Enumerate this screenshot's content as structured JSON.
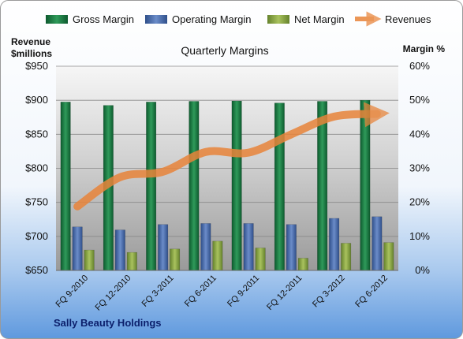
{
  "chart_data": {
    "type": "bar",
    "title": "Quarterly Margins",
    "company": "Sally Beauty Holdings",
    "left_axis_label": [
      "Revenue",
      "$millions"
    ],
    "right_axis_label": "Margin %",
    "categories": [
      "FQ 9-2010",
      "FQ 12-2010",
      "FQ 3-2011",
      "FQ 6-2011",
      "FQ 9-2011",
      "FQ 12-2011",
      "FQ 3-2012",
      "FQ 6-2012"
    ],
    "left_ticks": [
      "$650",
      "$700",
      "$750",
      "$800",
      "$850",
      "$900",
      "$950"
    ],
    "right_ticks": [
      "0%",
      "10%",
      "20%",
      "30%",
      "40%",
      "50%",
      "60%"
    ],
    "y_left_range": [
      650,
      950
    ],
    "y_right_range": [
      0,
      60
    ],
    "grid": true,
    "legend_position": "top",
    "series": [
      {
        "name": "Gross Margin",
        "axis": "right",
        "kind": "bar",
        "color": "#1e7a45",
        "values": [
          49.5,
          48.5,
          49.5,
          49.7,
          49.8,
          49.2,
          49.7,
          50.0
        ]
      },
      {
        "name": "Operating Margin",
        "axis": "right",
        "kind": "bar",
        "color": "#4a6fad",
        "values": [
          12.8,
          11.9,
          13.5,
          13.8,
          13.8,
          13.5,
          15.3,
          15.8
        ]
      },
      {
        "name": "Net Margin",
        "axis": "right",
        "kind": "bar",
        "color": "#8ea84a",
        "values": [
          6.0,
          5.3,
          6.3,
          8.6,
          6.6,
          3.6,
          8.0,
          8.2
        ]
      },
      {
        "name": "Revenues",
        "axis": "left",
        "kind": "line",
        "color": "#e8843a",
        "values": [
          744,
          787,
          795,
          824,
          823,
          850,
          876,
          880
        ]
      }
    ]
  }
}
